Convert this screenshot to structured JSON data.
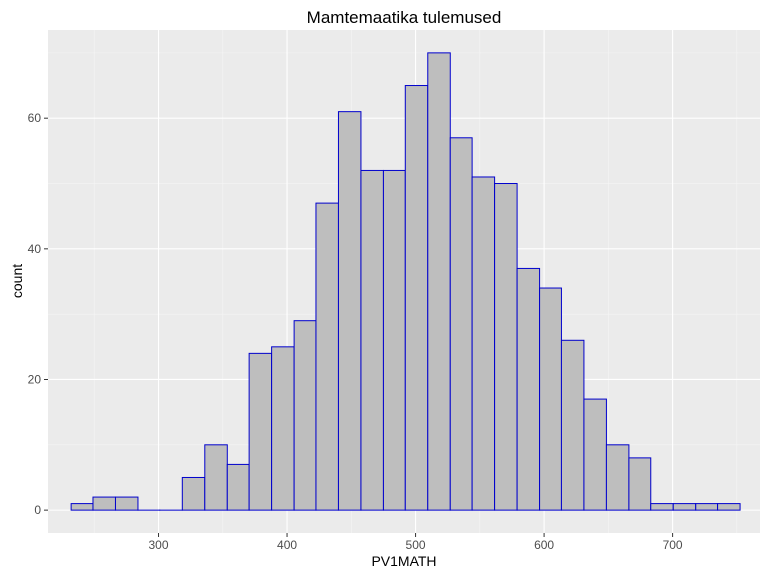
{
  "chart_data": {
    "type": "bar",
    "title": "Mamtemaatika tulemused",
    "xlabel": "PV1MATH",
    "ylabel": "count",
    "xlim": [
      214,
      768
    ],
    "ylim": [
      -3.5,
      73.5
    ],
    "x_ticks": [
      300,
      400,
      500,
      600,
      700
    ],
    "y_ticks": [
      0,
      20,
      40,
      60
    ],
    "grid": true,
    "bar_color": "#bebebe",
    "bar_outline_color": "#0000cd",
    "panel_color": "#ebebeb",
    "bins": [
      {
        "x0": 232.0,
        "x1": 249.0,
        "count": 1
      },
      {
        "x0": 249.0,
        "x1": 266.5,
        "count": 2
      },
      {
        "x0": 266.5,
        "x1": 284.0,
        "count": 2
      },
      {
        "x0": 284.0,
        "x1": 301.0,
        "count": 0
      },
      {
        "x0": 301.0,
        "x1": 318.5,
        "count": 0
      },
      {
        "x0": 318.5,
        "x1": 336.0,
        "count": 5
      },
      {
        "x0": 336.0,
        "x1": 353.5,
        "count": 10
      },
      {
        "x0": 353.5,
        "x1": 370.5,
        "count": 7
      },
      {
        "x0": 370.5,
        "x1": 388.0,
        "count": 24
      },
      {
        "x0": 388.0,
        "x1": 405.5,
        "count": 25
      },
      {
        "x0": 405.5,
        "x1": 422.5,
        "count": 29
      },
      {
        "x0": 422.5,
        "x1": 440.0,
        "count": 47
      },
      {
        "x0": 440.0,
        "x1": 457.5,
        "count": 61
      },
      {
        "x0": 457.5,
        "x1": 475.0,
        "count": 52
      },
      {
        "x0": 475.0,
        "x1": 492.0,
        "count": 52
      },
      {
        "x0": 492.0,
        "x1": 509.5,
        "count": 65
      },
      {
        "x0": 509.5,
        "x1": 527.0,
        "count": 70
      },
      {
        "x0": 527.0,
        "x1": 544.0,
        "count": 57
      },
      {
        "x0": 544.0,
        "x1": 561.5,
        "count": 51
      },
      {
        "x0": 561.5,
        "x1": 579.0,
        "count": 50
      },
      {
        "x0": 579.0,
        "x1": 596.5,
        "count": 37
      },
      {
        "x0": 596.5,
        "x1": 613.5,
        "count": 34
      },
      {
        "x0": 613.5,
        "x1": 631.0,
        "count": 26
      },
      {
        "x0": 631.0,
        "x1": 648.5,
        "count": 17
      },
      {
        "x0": 648.5,
        "x1": 666.0,
        "count": 10
      },
      {
        "x0": 666.0,
        "x1": 683.0,
        "count": 8
      },
      {
        "x0": 683.0,
        "x1": 700.5,
        "count": 1
      },
      {
        "x0": 700.5,
        "x1": 718.0,
        "count": 1
      },
      {
        "x0": 718.0,
        "x1": 735.0,
        "count": 1
      },
      {
        "x0": 735.0,
        "x1": 752.5,
        "count": 1
      }
    ]
  }
}
